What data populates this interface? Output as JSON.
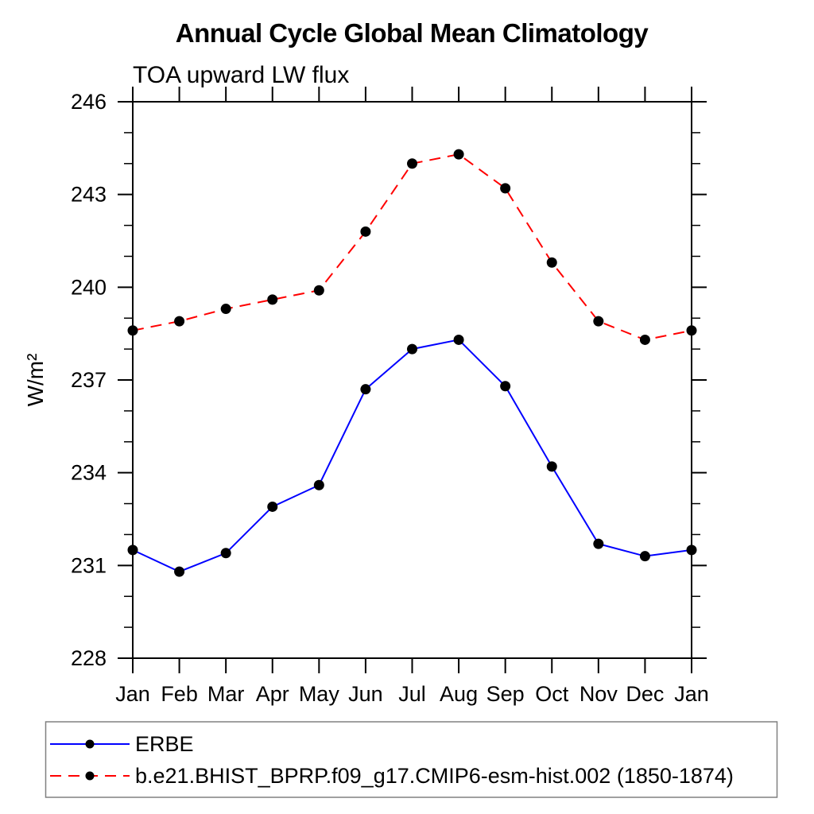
{
  "chart_data": {
    "type": "line",
    "title": "Annual Cycle Global Mean Climatology",
    "subtitle": "TOA upward LW flux",
    "ylabel": "W/m²",
    "xlabel": "",
    "categories": [
      "Jan",
      "Feb",
      "Mar",
      "Apr",
      "May",
      "Jun",
      "Jul",
      "Aug",
      "Sep",
      "Oct",
      "Nov",
      "Dec",
      "Jan"
    ],
    "ylim": [
      228,
      246
    ],
    "ytick_major_step": 3,
    "ytick_minor_step": 1,
    "ytick_labels": [
      "228",
      "231",
      "234",
      "237",
      "240",
      "243",
      "246"
    ],
    "grid": false,
    "legend_position": "bottom",
    "axis_color": "#000000",
    "marker_color": "#000000",
    "legend_border_color": "#808080",
    "series": [
      {
        "name": "ERBE",
        "color": "#0000ff",
        "line_style": "solid",
        "marker": "circle",
        "values": [
          231.5,
          230.8,
          231.4,
          232.9,
          233.6,
          236.7,
          238.0,
          238.3,
          236.8,
          234.2,
          231.7,
          231.3,
          231.5
        ]
      },
      {
        "name": "b.e21.BHIST_BPRP.f09_g17.CMIP6-esm-hist.002 (1850-1874)",
        "color": "#ff0000",
        "line_style": "dashed",
        "marker": "circle",
        "values": [
          238.6,
          238.9,
          239.3,
          239.6,
          239.9,
          241.8,
          244.0,
          244.3,
          243.2,
          240.8,
          238.9,
          238.3,
          238.6
        ]
      }
    ]
  }
}
